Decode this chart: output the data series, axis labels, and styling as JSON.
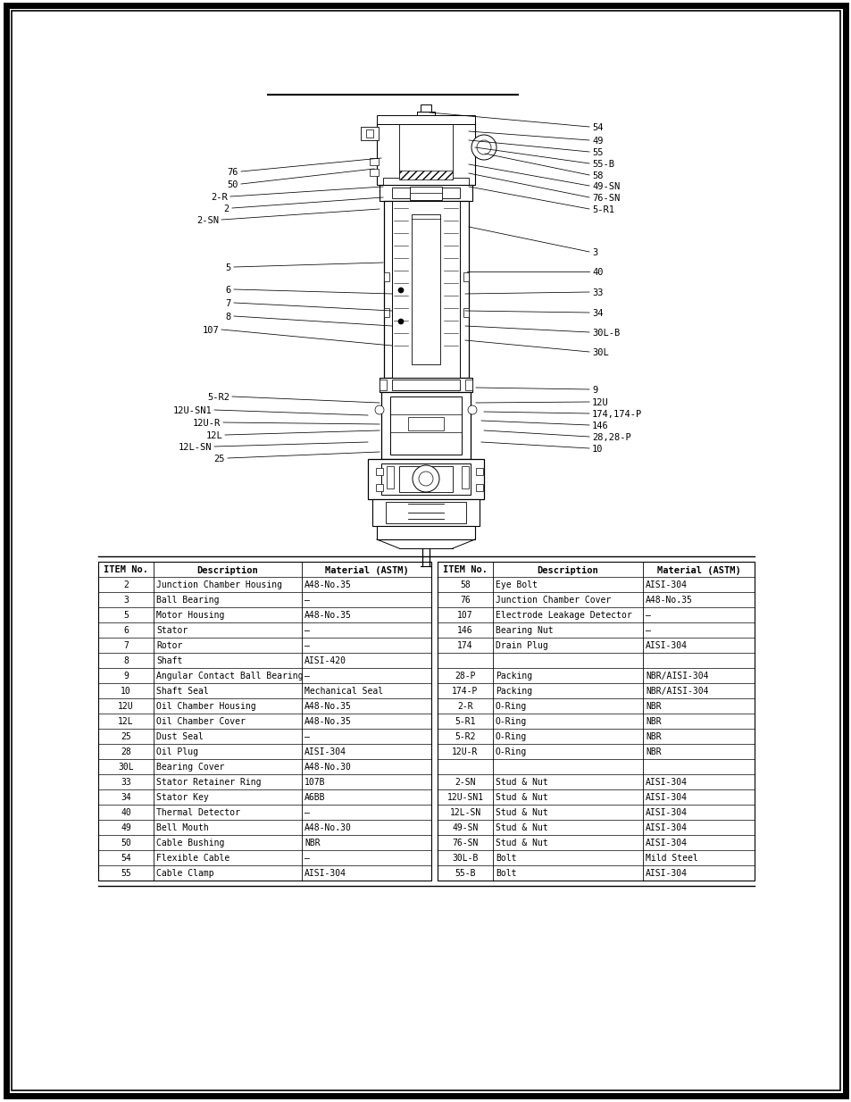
{
  "background_color": "#ffffff",
  "table_left": {
    "headers": [
      "ITEM No.",
      "Description",
      "Material (ASTM)"
    ],
    "rows": [
      [
        "2",
        "Junction Chamber Housing",
        "A48-No.35"
      ],
      [
        "3",
        "Ball Bearing",
        "—"
      ],
      [
        "5",
        "Motor Housing",
        "A48-No.35"
      ],
      [
        "6",
        "Stator",
        "—"
      ],
      [
        "7",
        "Rotor",
        "—"
      ],
      [
        "8",
        "Shaft",
        "AISI-420"
      ],
      [
        "9",
        "Angular Contact Ball Bearing",
        "—"
      ],
      [
        "10",
        "Shaft Seal",
        "Mechanical Seal"
      ],
      [
        "12U",
        "Oil Chamber Housing",
        "A48-No.35"
      ],
      [
        "12L",
        "Oil Chamber Cover",
        "A48-No.35"
      ],
      [
        "25",
        "Dust Seal",
        "—"
      ],
      [
        "28",
        "Oil Plug",
        "AISI-304"
      ],
      [
        "30L",
        "Bearing Cover",
        "A48-No.30"
      ],
      [
        "33",
        "Stator Retainer Ring",
        "107B"
      ],
      [
        "34",
        "Stator Key",
        "A6BB"
      ],
      [
        "40",
        "Thermal Detector",
        "—"
      ],
      [
        "49",
        "Bell Mouth",
        "A48-No.30"
      ],
      [
        "50",
        "Cable Bushing",
        "NBR"
      ],
      [
        "54",
        "Flexible Cable",
        "—"
      ],
      [
        "55",
        "Cable Clamp",
        "AISI-304"
      ]
    ]
  },
  "table_right": {
    "headers": [
      "ITEM No.",
      "Description",
      "Material (ASTM)"
    ],
    "rows": [
      [
        "58",
        "Eye Bolt",
        "AISI-304"
      ],
      [
        "76",
        "Junction Chamber Cover",
        "A48-No.35"
      ],
      [
        "107",
        "Electrode Leakage Detector",
        "—"
      ],
      [
        "146",
        "Bearing Nut",
        "—"
      ],
      [
        "174",
        "Drain Plug",
        "AISI-304"
      ],
      [
        "",
        "",
        ""
      ],
      [
        "28-P",
        "Packing",
        "NBR/AISI-304"
      ],
      [
        "174-P",
        "Packing",
        "NBR/AISI-304"
      ],
      [
        "2-R",
        "O-Ring",
        "NBR"
      ],
      [
        "5-R1",
        "O-Ring",
        "NBR"
      ],
      [
        "5-R2",
        "O-Ring",
        "NBR"
      ],
      [
        "12U-R",
        "O-Ring",
        "NBR"
      ],
      [
        "",
        "",
        ""
      ],
      [
        "2-SN",
        "Stud & Nut",
        "AISI-304"
      ],
      [
        "12U-SN1",
        "Stud & Nut",
        "AISI-304"
      ],
      [
        "12L-SN",
        "Stud & Nut",
        "AISI-304"
      ],
      [
        "49-SN",
        "Stud & Nut",
        "AISI-304"
      ],
      [
        "76-SN",
        "Stud & Nut",
        "AISI-304"
      ],
      [
        "30L-B",
        "Bolt",
        "Mild Steel"
      ],
      [
        "55-B",
        "Bolt",
        "AISI-304"
      ]
    ]
  }
}
